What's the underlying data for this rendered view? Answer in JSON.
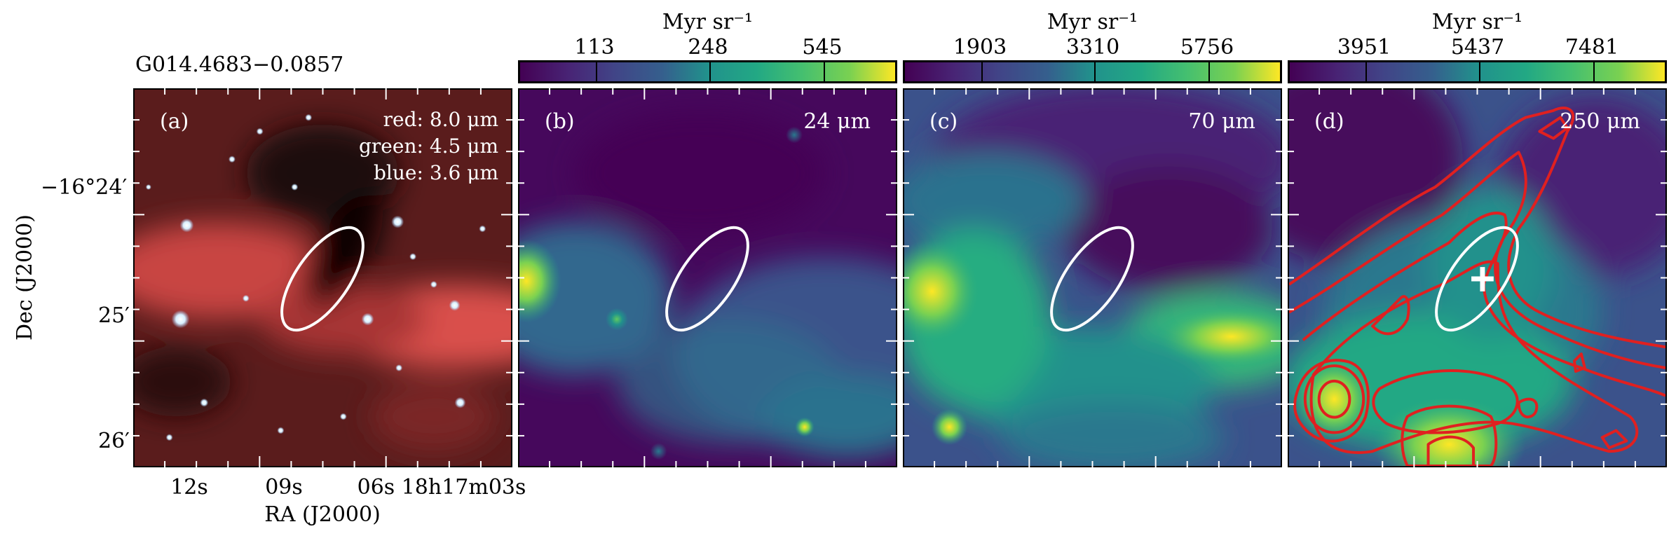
{
  "source_name": "G014.4683−0.0857",
  "axis_labels": {
    "x": "RA (J2000)",
    "y": "Dec (J2000)"
  },
  "ra_ticks": [
    "12s",
    "09s",
    "06s 18h17m03s"
  ],
  "dec_ticks": [
    "−16°24′",
    "25′",
    "26′"
  ],
  "panels": [
    {
      "id": "a",
      "tag": "(a)",
      "legend": {
        "red": "red: 8.0 μm",
        "green": "green: 4.5 μm",
        "blue": "blue: 3.6 μm"
      }
    },
    {
      "id": "b",
      "tag": "(b)",
      "band": "24 μm",
      "colorbar": {
        "unit": "Myr sr⁻¹",
        "ticks": [
          "113",
          "248",
          "545"
        ]
      }
    },
    {
      "id": "c",
      "tag": "(c)",
      "band": "70 μm",
      "colorbar": {
        "unit": "Myr sr⁻¹",
        "ticks": [
          "1903",
          "3310",
          "5756"
        ]
      }
    },
    {
      "id": "d",
      "tag": "(d)",
      "band": "250 μm",
      "colorbar": {
        "unit": "Myr sr⁻¹",
        "ticks": [
          "3951",
          "5437",
          "7481"
        ]
      }
    }
  ],
  "colors": {
    "ellipse": "#ffffff",
    "contour": "#e02020",
    "marker": "#ffffff",
    "viridis_low": "#440154",
    "viridis_mid": "#21918c",
    "viridis_high": "#fde725"
  }
}
